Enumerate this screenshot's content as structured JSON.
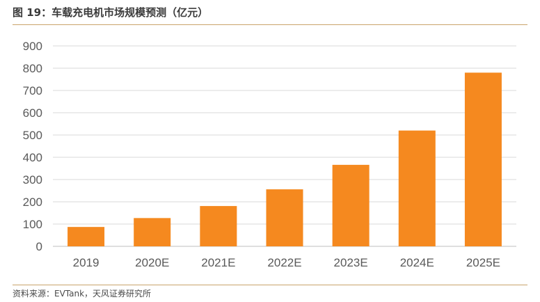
{
  "figure": {
    "title": "图 19：车载充电机市场规模预测（亿元）",
    "source": "资料来源：EVTank，天风证券研究所"
  },
  "colors": {
    "bar": "#f5891f",
    "grid": "#d9d9d9",
    "axis_text": "#595959",
    "rule": "#c9a36a"
  },
  "chart_data": {
    "type": "bar",
    "categories": [
      "2019",
      "2020E",
      "2021E",
      "2022E",
      "2023E",
      "2024E",
      "2025E"
    ],
    "values": [
      87,
      127,
      181,
      256,
      366,
      520,
      780
    ],
    "title": "",
    "xlabel": "",
    "ylabel": "",
    "ylim": [
      0,
      900
    ],
    "yticks": [
      0,
      100,
      200,
      300,
      400,
      500,
      600,
      700,
      800,
      900
    ],
    "grid": true,
    "legend": "none"
  }
}
